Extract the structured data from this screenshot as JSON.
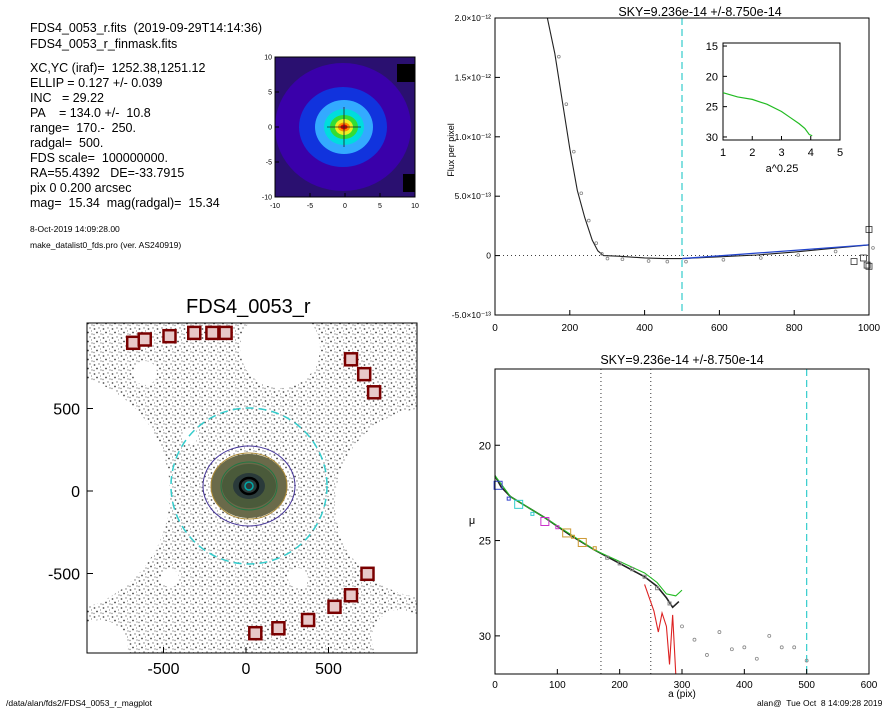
{
  "header": {
    "file_line": "FDS4_0053_r.fits  (2019-09-29T14:14:36)",
    "mask_line": "FDS4_0053_r_finmask.fits",
    "params": [
      "XC,YC (iraf)=  1252.38,1251.12",
      "ELLIP = 0.127 +/- 0.039",
      "INC   = 29.22",
      "PA    = 134.0 +/-  10.8",
      "range=  170.-  250.",
      "radgal=  500.",
      "FDS scale=  100000000.",
      "RA=55.4392   DE=-33.7915",
      "pix 0 0.200 arcsec",
      "mag=  15.34  mag(radgal)=  15.34"
    ],
    "date": "8-Oct-2019 14:09:28.00",
    "program": "make_datalist0_fds.pro (ver. AS240919)"
  },
  "footer": {
    "path": "/data/alan/fds2/FDS4_0053_r_magplot",
    "user": "alan@  Tue Oct  8 14:09:28 2019"
  },
  "colors": {
    "cyan_dash": "#33cccc",
    "red_box": "#7a0000",
    "curve_black": "#222222",
    "curve_green": "#22bb22",
    "curve_red": "#dd2222",
    "curve_blue": "#2244cc"
  },
  "chart_data": [
    {
      "id": "center_thumbnail",
      "type": "heatmap",
      "title": "",
      "x_ticks": [
        "-10",
        "-5",
        "0",
        "5",
        "10"
      ],
      "y_ticks": [
        "10",
        "5",
        "0",
        "-5",
        "-10"
      ],
      "xlim": [
        -10,
        10
      ],
      "ylim": [
        -10,
        10
      ]
    },
    {
      "id": "galaxy_image",
      "type": "scatter",
      "title": "FDS4_0053_r",
      "x_ticks": [
        "-500",
        "0",
        "500"
      ],
      "y_ticks": [
        "500",
        "0",
        "-500"
      ],
      "xlim": [
        -1000,
        1000
      ],
      "ylim": [
        -1000,
        1000
      ],
      "mask_boxes": [
        [
          -720,
          880
        ],
        [
          -650,
          900
        ],
        [
          -500,
          920
        ],
        [
          -350,
          940
        ],
        [
          -240,
          940
        ],
        [
          -160,
          940
        ],
        [
          600,
          780
        ],
        [
          680,
          690
        ],
        [
          740,
          580
        ],
        [
          700,
          -520
        ],
        [
          600,
          -650
        ],
        [
          500,
          -720
        ],
        [
          340,
          -800
        ],
        [
          160,
          -850
        ],
        [
          20,
          -880
        ]
      ],
      "radgal_circle_radius": 500
    },
    {
      "id": "sky_profile",
      "type": "line",
      "title": "SKY=9.236e-14 +/-8.750e-14",
      "ylabel": "Flux per pixel",
      "xlim": [
        0,
        1000
      ],
      "ylim": [
        -5e-13,
        2e-12
      ],
      "x_ticks": [
        "0",
        "200",
        "400",
        "600",
        "800",
        "1000"
      ],
      "y_ticks": [
        "-5.0×10⁻¹³",
        "0",
        "5.0×10⁻¹³",
        "1.0×10⁻¹²",
        "1.5×10⁻¹²",
        "2.0×10⁻¹²"
      ],
      "sky_radius": 500,
      "profile": [
        [
          140,
          2.1e-12
        ],
        [
          160,
          1.7e-12
        ],
        [
          180,
          1.3e-12
        ],
        [
          200,
          9e-13
        ],
        [
          220,
          5.5e-13
        ],
        [
          240,
          3.2e-13
        ],
        [
          260,
          1.3e-13
        ],
        [
          275,
          4e-14
        ],
        [
          290,
          0
        ],
        [
          330,
          -5e-15
        ],
        [
          400,
          -2e-14
        ],
        [
          450,
          -2.5e-14
        ],
        [
          500,
          -2.5e-14
        ],
        [
          600,
          -1e-14
        ],
        [
          700,
          5e-15
        ],
        [
          800,
          3e-14
        ],
        [
          900,
          6e-14
        ],
        [
          1000,
          9e-14
        ]
      ],
      "outlier_squares": [
        [
          960,
          -5e-14
        ],
        [
          985,
          -2e-14
        ],
        [
          995,
          -8e-14
        ],
        [
          1000,
          -9e-14
        ],
        [
          1000,
          2.2e-13
        ]
      ],
      "inset": {
        "xlabel": "a^0.25",
        "x_ticks": [
          "1",
          "2",
          "3",
          "4",
          "5"
        ],
        "y_ticks": [
          "15",
          "20",
          "25",
          "30"
        ],
        "xlim": [
          1,
          5
        ],
        "ylim": [
          30.5,
          14.5
        ],
        "curve": [
          [
            1.0,
            22.7
          ],
          [
            1.5,
            23.4
          ],
          [
            2.0,
            23.8
          ],
          [
            2.5,
            24.6
          ],
          [
            3.0,
            25.8
          ],
          [
            3.3,
            26.8
          ],
          [
            3.6,
            27.8
          ],
          [
            3.8,
            28.6
          ],
          [
            3.95,
            29.6
          ],
          [
            4.05,
            29.8
          ]
        ]
      }
    },
    {
      "id": "surface_brightness",
      "type": "line",
      "title": "SKY=9.236e-14 +/-8.750e-14",
      "xlabel": "a (pix)",
      "ylabel": "μ",
      "xlim": [
        0,
        600
      ],
      "ylim": [
        32,
        16
      ],
      "x_ticks": [
        "0",
        "100",
        "200",
        "300",
        "400",
        "500",
        "600"
      ],
      "y_ticks": [
        "20",
        "25",
        "30"
      ],
      "range_lines": [
        170,
        250
      ],
      "radgal_line": 500,
      "series": [
        {
          "name": "",
          "values": [
            [
              0,
              21.6
            ],
            [
              10,
              22.2
            ],
            [
              25,
              22.7
            ],
            [
              50,
              23.2
            ],
            [
              80,
              23.8
            ],
            [
              120,
              24.7
            ],
            [
              160,
              25.5
            ],
            [
              200,
              26.2
            ],
            [
              240,
              26.9
            ],
            [
              260,
              27.4
            ],
            [
              275,
              28.0
            ],
            [
              285,
              28.5
            ],
            [
              295,
              28.2
            ]
          ]
        },
        {
          "name": "",
          "values": [
            [
              0,
              21.6
            ],
            [
              25,
              22.7
            ],
            [
              80,
              23.8
            ],
            [
              160,
              25.5
            ],
            [
              200,
              26.1
            ],
            [
              240,
              26.7
            ],
            [
              260,
              27.2
            ],
            [
              275,
              27.8
            ],
            [
              290,
              27.9
            ],
            [
              300,
              27.6
            ]
          ]
        },
        {
          "name": "",
          "values": [
            [
              240,
              27.3
            ],
            [
              255,
              28.7
            ],
            [
              262,
              29.8
            ],
            [
              268,
              28.8
            ],
            [
              275,
              29.5
            ],
            [
              280,
              31.5
            ],
            [
              285,
              28.9
            ],
            [
              290,
              32.0
            ]
          ]
        }
      ],
      "markers": [
        [
          5,
          22.1
        ],
        [
          22,
          22.8
        ],
        [
          38,
          23.1
        ],
        [
          60,
          23.6
        ],
        [
          80,
          24.0
        ],
        [
          100,
          24.3
        ],
        [
          115,
          24.6
        ],
        [
          125,
          24.8
        ],
        [
          140,
          25.1
        ],
        [
          160,
          25.4
        ],
        [
          180,
          25.9
        ],
        [
          200,
          26.2
        ],
        [
          220,
          26.5
        ],
        [
          240,
          26.9
        ],
        [
          260,
          27.5
        ],
        [
          280,
          28.3
        ]
      ],
      "outliers": [
        [
          300,
          29.5
        ],
        [
          320,
          30.2
        ],
        [
          340,
          31.0
        ],
        [
          360,
          29.8
        ],
        [
          380,
          30.7
        ],
        [
          400,
          30.6
        ],
        [
          420,
          31.2
        ],
        [
          440,
          30.0
        ],
        [
          460,
          30.6
        ],
        [
          480,
          30.6
        ],
        [
          500,
          31.3
        ]
      ]
    }
  ]
}
